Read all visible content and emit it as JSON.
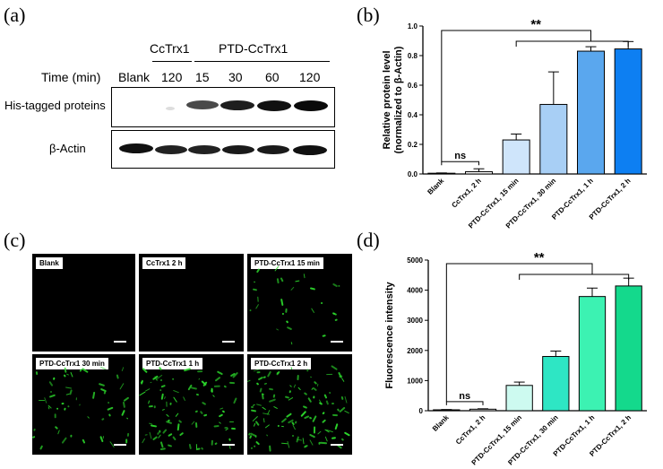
{
  "panels": {
    "a": "(a)",
    "b": "(b)",
    "c": "(c)",
    "d": "(d)"
  },
  "western_blot": {
    "group_ccTrx1": "CcTrx1",
    "group_ptd": "PTD-CcTrx1",
    "time_label": "Time (min)",
    "lane_labels": [
      "Blank",
      "120",
      "15",
      "30",
      "60",
      "120"
    ],
    "row_his": "His-tagged proteins",
    "row_actin": "β-Actin"
  },
  "microscopy": {
    "tiles": [
      "Blank",
      "CcTrx1 2 h",
      "PTD-CcTrx1 15 min",
      "PTD-CcTrx1 30 min",
      "PTD-CcTrx1 1 h",
      "PTD-CcTrx1 2 h"
    ]
  },
  "chart_data": [
    {
      "type": "bar",
      "panel": "b",
      "categories": [
        "Blank",
        "CcTrx1, 2 h",
        "PTD-CcTrx1, 15 min",
        "PTD-CcTrx1, 30 min",
        "PTD-CcTrx1, 1 h",
        "PTD-CcTrx1, 2 h"
      ],
      "values": [
        0.005,
        0.015,
        0.23,
        0.47,
        0.83,
        0.845
      ],
      "errors": [
        0.002,
        0.02,
        0.04,
        0.22,
        0.03,
        0.05
      ],
      "colors": [
        "#ffffff",
        "#ffffff",
        "#cfe5fb",
        "#a8cff5",
        "#5aa7ee",
        "#0d7ff2"
      ],
      "ylabel": "Relative protein level\n(normalized to β-Actin)",
      "ylim": [
        0,
        1.0
      ],
      "yticks": [
        "0.0",
        "0.2",
        "0.4",
        "0.6",
        "0.8",
        "1.0"
      ],
      "annotations": {
        "ns": "ns",
        "sig": "**"
      }
    },
    {
      "type": "bar",
      "panel": "d",
      "categories": [
        "Blank",
        "CcTrx1, 2 h",
        "PTD-CcTrx1, 15 min",
        "PTD-CcTrx1, 30 min",
        "PTD-CcTrx1, 1 h",
        "PTD-CcTrx1, 2 h"
      ],
      "values": [
        30,
        50,
        840,
        1800,
        3790,
        4140
      ],
      "errors": [
        10,
        15,
        110,
        180,
        280,
        260
      ],
      "colors": [
        "#ffffff",
        "#ffffff",
        "#cdfaf0",
        "#2ee6c4",
        "#3cf2b2",
        "#14d98c"
      ],
      "ylabel": "Fluorescence intensity",
      "ylim": [
        0,
        5000
      ],
      "yticks": [
        "0",
        "1000",
        "2000",
        "3000",
        "4000",
        "5000"
      ],
      "annotations": {
        "ns": "ns",
        "sig": "**"
      }
    }
  ]
}
